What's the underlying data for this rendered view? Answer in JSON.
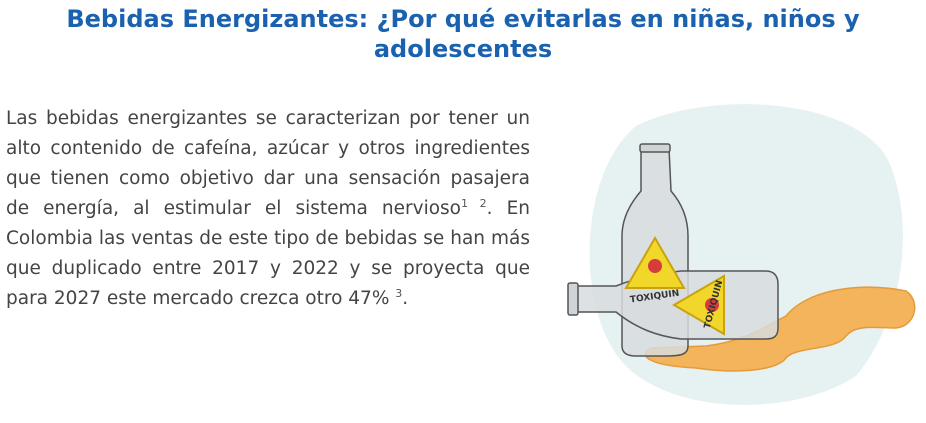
{
  "header": {
    "title": "Bebidas Energizantes: ¿Por qué evitarlas en niñas, niños y adolescentes"
  },
  "body": {
    "text_1": "Las bebidas energizantes se caracterizan por tener un alto contenido de cafeína, azúcar y otros ingredientes que tienen como objetivo dar una sensación pasajera de energía, al estimular el sistema nervioso",
    "sup_1": "1 2",
    "text_2": ". En Colombia las ventas de este tipo de bebidas se han más que duplicado entre 2017 y 2022 y se proyecta que para 2027 este mercado crezca otro 47% ",
    "sup_2": "3",
    "text_3": "."
  },
  "illustration": {
    "labels": [
      "TOXIQUIN",
      "TOXIQUIN"
    ]
  }
}
